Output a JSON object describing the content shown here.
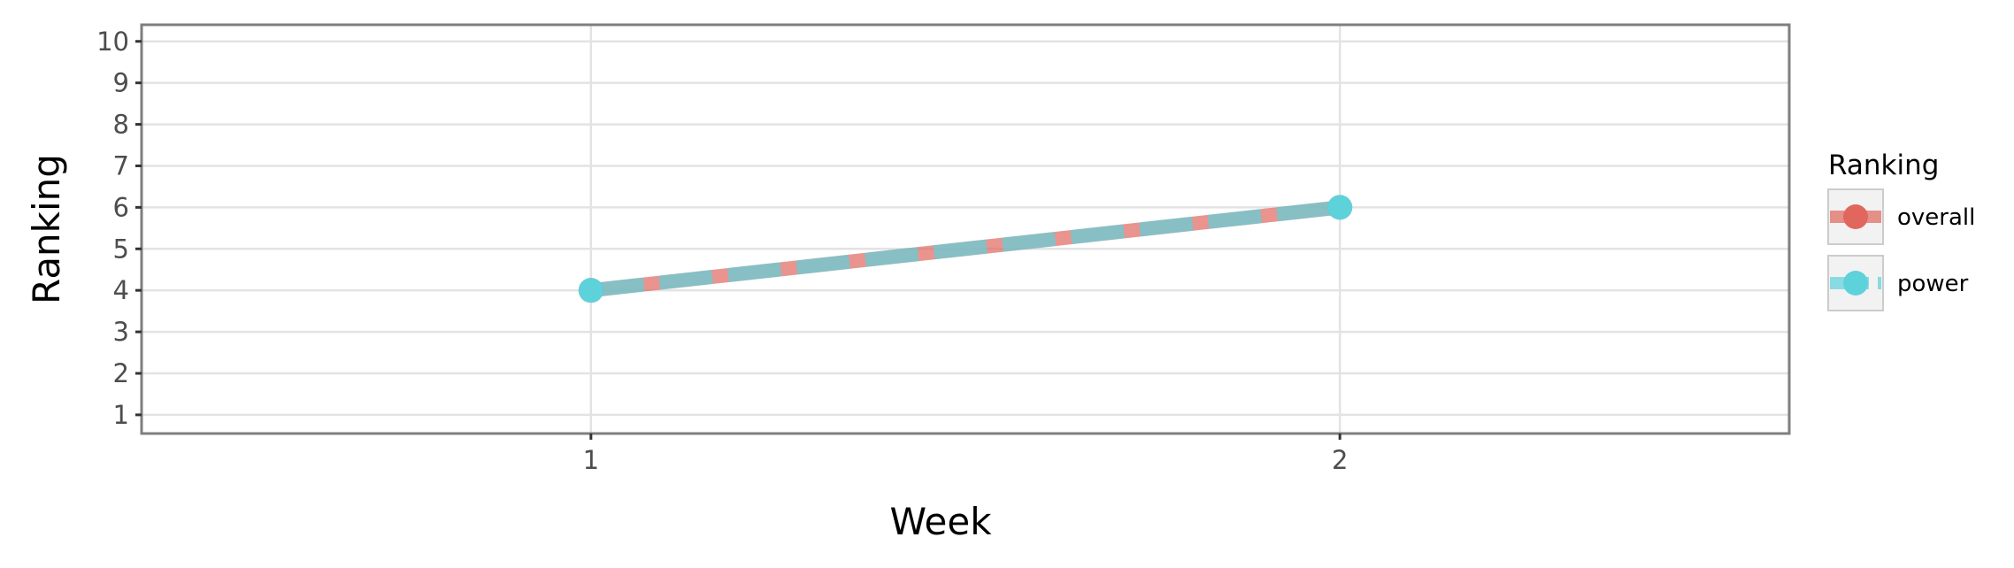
{
  "chart_data": {
    "type": "line",
    "xlabel": "Week",
    "ylabel": "Ranking",
    "x": [
      1,
      2
    ],
    "x_ticks": [
      "1",
      "2"
    ],
    "xlim": [
      0.4,
      2.6
    ],
    "y_ticks": [
      "1",
      "2",
      "3",
      "4",
      "5",
      "6",
      "7",
      "8",
      "9",
      "10"
    ],
    "ylim": [
      10.4,
      0.55
    ],
    "y_reversed": true,
    "grid": true,
    "legend": {
      "title": "Ranking",
      "position": "right"
    },
    "series": [
      {
        "name": "overall",
        "values": [
          4,
          6
        ],
        "color": "#e0665e",
        "line_style": "solid"
      },
      {
        "name": "power",
        "values": [
          4,
          6
        ],
        "color": "#5dd2db",
        "line_style": "dashed"
      }
    ]
  }
}
